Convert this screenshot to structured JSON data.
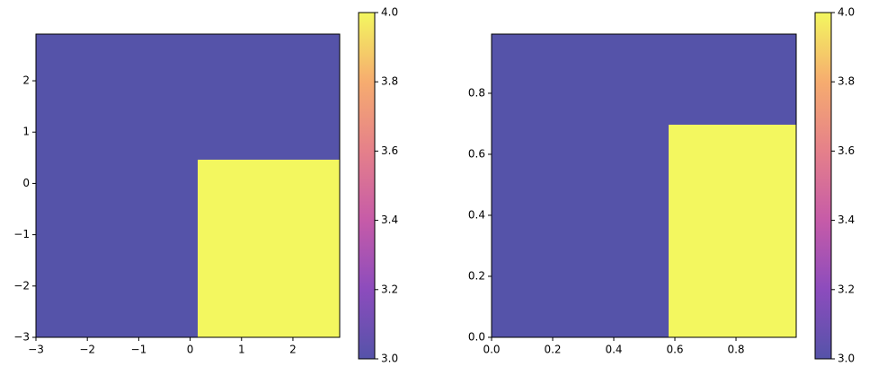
{
  "chart_data": [
    {
      "type": "heatmap",
      "x_edges": [
        -3,
        0.15,
        2.91
      ],
      "y_edges": [
        -3,
        0.46,
        2.91
      ],
      "values": [
        [
          3,
          4
        ],
        [
          3,
          3
        ]
      ],
      "xlim": [
        -3,
        2.91
      ],
      "ylim": [
        -3,
        2.91
      ],
      "xticks": [
        {
          "value": -3,
          "label": "−3"
        },
        {
          "value": -2,
          "label": "−2"
        },
        {
          "value": -1,
          "label": "−1"
        },
        0,
        1,
        2
      ],
      "yticks": [
        {
          "value": -3,
          "label": "−3"
        },
        {
          "value": -2,
          "label": "−2"
        },
        {
          "value": -1,
          "label": "−1"
        },
        0,
        1,
        2
      ],
      "clim": [
        3,
        4
      ],
      "colorbar_ticks": [
        {
          "value": 3,
          "label": "3.0"
        },
        3.2,
        3.4,
        3.6,
        3.8,
        {
          "value": 4,
          "label": "4.0"
        }
      ],
      "colormap": [
        "#5553a9",
        "#8c4cbd",
        "#c65ba8",
        "#e5808a",
        "#f6ac6f",
        "#f3f75f"
      ]
    },
    {
      "type": "heatmap",
      "x_edges": [
        0,
        0.579,
        0.997
      ],
      "y_edges": [
        0,
        0.697,
        0.994
      ],
      "values": [
        [
          3,
          4
        ],
        [
          3,
          3
        ]
      ],
      "xlim": [
        0,
        0.997
      ],
      "ylim": [
        0,
        0.994
      ],
      "xticks": [
        {
          "value": 0,
          "label": "0.0"
        },
        0.2,
        0.4,
        0.6,
        0.8
      ],
      "yticks": [
        {
          "value": 0,
          "label": "0.0"
        },
        0.2,
        0.4,
        0.6,
        0.8
      ],
      "clim": [
        3,
        4
      ],
      "colorbar_ticks": [
        {
          "value": 3,
          "label": "3.0"
        },
        3.2,
        3.4,
        3.6,
        3.8,
        {
          "value": 4,
          "label": "4.0"
        }
      ],
      "colormap": [
        "#5553a9",
        "#8c4cbd",
        "#c65ba8",
        "#e5808a",
        "#f6ac6f",
        "#f3f75f"
      ]
    }
  ]
}
